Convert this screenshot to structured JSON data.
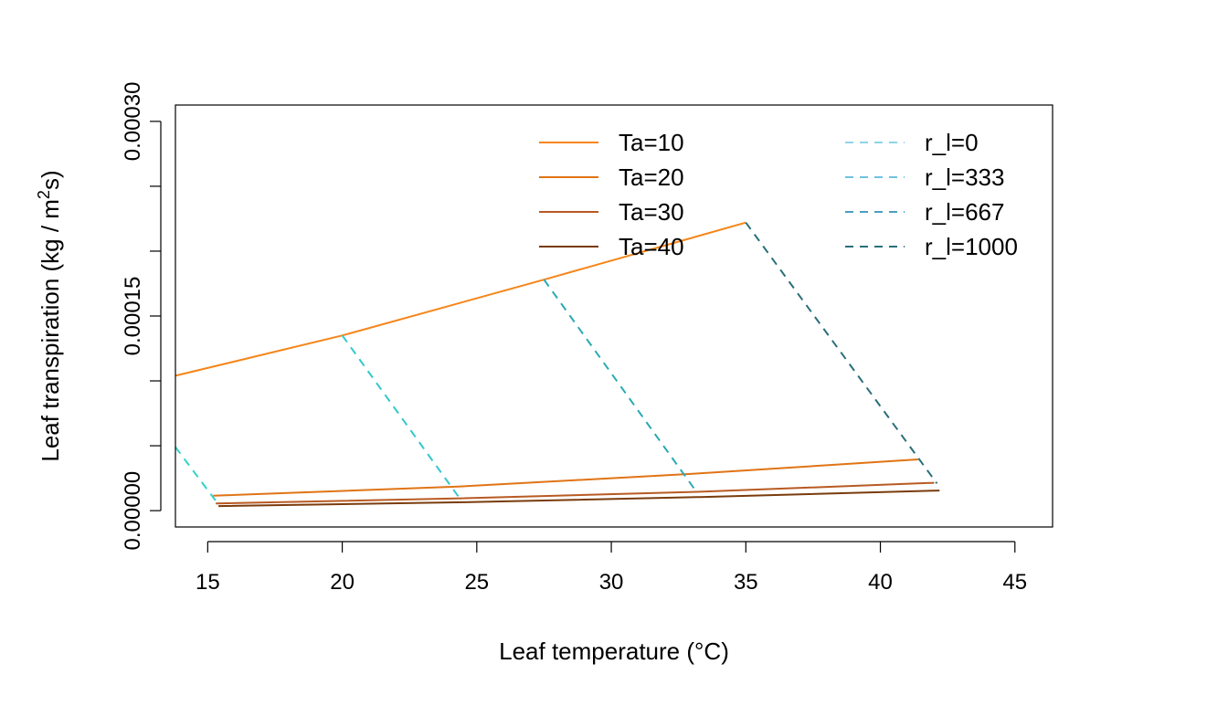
{
  "chart_data": {
    "type": "line",
    "title": "",
    "xlabel": "Leaf temperature (°C)",
    "ylabel_main": "Leaf transpiration (kg / m",
    "ylabel_sup": "2",
    "ylabel_tail": "s)",
    "xlim": [
      13.8,
      46.4
    ],
    "ylim": [
      -1.26e-05,
      0.0003126
    ],
    "x_ticks": [
      15,
      20,
      25,
      30,
      35,
      40,
      45
    ],
    "x_tick_labels": [
      "15",
      "20",
      "25",
      "30",
      "35",
      "40",
      "45"
    ],
    "y_ticks": [
      0,
      5e-05,
      0.0001,
      0.00015,
      0.0002,
      0.00025,
      0.0003
    ],
    "y_tick_labels": [
      "0.00000",
      "",
      "",
      "0.00015",
      "",
      "",
      "0.00030"
    ],
    "grid": false,
    "series": [
      {
        "name": "Ta=10",
        "color": "#f58518",
        "dash": "solid",
        "x": [
          13.8,
          20,
          27.5,
          35
        ],
        "y": [
          0.000104,
          0.000135,
          0.000178,
          0.000222
        ]
      },
      {
        "name": "Ta=20",
        "color": "#e07415",
        "dash": "solid",
        "x": [
          15.2,
          24.3,
          33.1,
          41.4
        ],
        "y": [
          1.15e-05,
          1.85e-05,
          2.85e-05,
          3.95e-05
        ]
      },
      {
        "name": "Ta=30",
        "color": "#b85a22",
        "dash": "solid",
        "x": [
          15.3,
          24.4,
          33.2,
          42.0
        ],
        "y": [
          5.5e-06,
          9.5e-06,
          1.45e-05,
          2.15e-05
        ]
      },
      {
        "name": "Ta=40",
        "color": "#7a3b0c",
        "dash": "solid",
        "x": [
          15.4,
          24.5,
          33.3,
          42.2
        ],
        "y": [
          3.5e-06,
          6.5e-06,
          1.05e-05,
          1.55e-05
        ]
      },
      {
        "name": "r_l=0",
        "color": "#2fd3c9",
        "dash": "dashed",
        "x": [
          13.8,
          15.3
        ],
        "y": [
          4.9e-05,
          7.5e-06
        ]
      },
      {
        "name": "r_l=333",
        "color": "#31c8cc",
        "dash": "dashed",
        "x": [
          20,
          24.4
        ],
        "y": [
          0.000135,
          8.5e-06
        ]
      },
      {
        "name": "r_l=667",
        "color": "#2aa9b4",
        "dash": "dashed",
        "x": [
          27.5,
          33.2
        ],
        "y": [
          0.000178,
          1.35e-05
        ]
      },
      {
        "name": "r_l=1000",
        "color": "#2a6f7a",
        "dash": "dashed",
        "x": [
          35,
          42.1
        ],
        "y": [
          0.000222,
          2.1e-05
        ]
      }
    ],
    "legend_left": [
      {
        "label": "Ta=10",
        "color": "#f58518",
        "dash": "solid"
      },
      {
        "label": "Ta=20",
        "color": "#e07415",
        "dash": "solid"
      },
      {
        "label": "Ta=30",
        "color": "#b85a22",
        "dash": "solid"
      },
      {
        "label": "Ta=40",
        "color": "#7a3b0c",
        "dash": "solid"
      }
    ],
    "legend_right": [
      {
        "label": "r_l=0",
        "color": "#8fd3ea",
        "dash": "dashed"
      },
      {
        "label": "r_l=333",
        "color": "#6ec3e0",
        "dash": "dashed"
      },
      {
        "label": "r_l=667",
        "color": "#4a9fc0",
        "dash": "dashed"
      },
      {
        "label": "r_l=1000",
        "color": "#2a6f7a",
        "dash": "dashed"
      }
    ],
    "legend_position": "top-right"
  }
}
